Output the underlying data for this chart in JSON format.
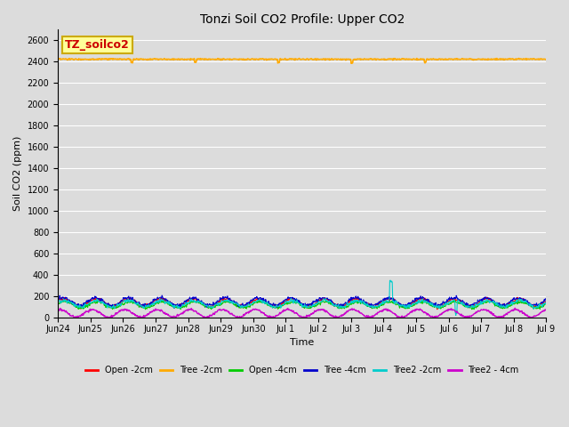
{
  "title": "Tonzi Soil CO2 Profile: Upper CO2",
  "xlabel": "Time",
  "ylabel": "Soil CO2 (ppm)",
  "ylim": [
    0,
    2700
  ],
  "yticks": [
    0,
    200,
    400,
    600,
    800,
    1000,
    1200,
    1400,
    1600,
    1800,
    2000,
    2200,
    2400,
    2600
  ],
  "background_color": "#dcdcdc",
  "annotation_label": "TZ_soilco2",
  "annotation_box_color": "#ffff99",
  "annotation_box_edge": "#ccaa00",
  "annotation_text_color": "#cc0000",
  "x_tick_labels": [
    "Jun 24",
    "Jun 25",
    "Jun 26",
    "Jun 27",
    "Jun 28",
    "Jun 29",
    "Jun 30",
    "Jul 1",
    "Jul 2",
    "Jul 3",
    "Jul 4",
    "Jul 5",
    "Jul 6",
    "Jul 7",
    "Jul 8",
    "Jul 9"
  ],
  "series": [
    {
      "label": "Open -2cm",
      "color": "#ff0000",
      "linewidth": 0.8
    },
    {
      "label": "Tree -2cm",
      "color": "#ffaa00",
      "linewidth": 1.2
    },
    {
      "label": "Open -4cm",
      "color": "#00cc00",
      "linewidth": 0.8
    },
    {
      "label": "Tree -4cm",
      "color": "#0000cc",
      "linewidth": 0.8
    },
    {
      "label": "Tree2 -2cm",
      "color": "#00cccc",
      "linewidth": 0.8
    },
    {
      "label": "Tree2 - 4cm",
      "color": "#cc00cc",
      "linewidth": 1.0
    }
  ]
}
